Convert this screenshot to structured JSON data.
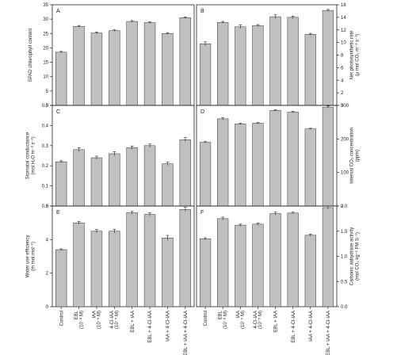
{
  "figure": {
    "group_labels": [
      "Control",
      "EBL\n(10⁻⁸ M)",
      "IAA\n(10⁻⁵ M)",
      "4-Cl-IAA\n(10⁻⁵ M)",
      "EBL + IAA",
      "EBL + 4-Cl-IAA",
      "IAA + 4-Cl-IAA",
      "EBL + IAA + 4-Cl-IAA"
    ]
  },
  "colors": {
    "bar": "#c0c0c0",
    "bar_stroke": "#333333",
    "axis": "#222222"
  },
  "chart_data": [
    {
      "type": "bar",
      "panel": "A",
      "ylabel": "SPAD chlorophyll content",
      "y_side": "left",
      "ylim": [
        0,
        35
      ],
      "yticks": [
        0,
        5,
        10,
        15,
        20,
        25,
        30,
        35
      ],
      "values": [
        18.5,
        27.5,
        25.2,
        26.0,
        29.2,
        28.8,
        25.0,
        30.5
      ],
      "errors": [
        0.3,
        0.3,
        0.3,
        0.3,
        0.3,
        0.3,
        0.3,
        0.3
      ]
    },
    {
      "type": "bar",
      "panel": "B",
      "ylabel": "Net photosynthetic rate\n(μ mol CO₂ m⁻² s⁻¹)",
      "y_side": "right",
      "ylim": [
        0,
        16
      ],
      "yticks": [
        0,
        2,
        4,
        6,
        8,
        10,
        12,
        14,
        16
      ],
      "values": [
        9.8,
        13.2,
        12.5,
        12.7,
        14.1,
        14.0,
        11.3,
        15.1
      ],
      "errors": [
        0.3,
        0.15,
        0.3,
        0.15,
        0.3,
        0.2,
        0.15,
        0.15
      ]
    },
    {
      "type": "bar",
      "panel": "C",
      "ylabel": "Stomatal conductance\n(mol H₂O m⁻² s⁻¹)",
      "y_side": "left",
      "ylim": [
        0,
        0.5
      ],
      "yticks": [
        0.0,
        0.1,
        0.2,
        0.3,
        0.4,
        0.5
      ],
      "values": [
        0.22,
        0.28,
        0.24,
        0.26,
        0.29,
        0.3,
        0.21,
        0.33
      ],
      "errors": [
        0.005,
        0.01,
        0.008,
        0.01,
        0.008,
        0.008,
        0.008,
        0.01
      ]
    },
    {
      "type": "bar",
      "panel": "D",
      "ylabel": "Internal CO₂ concentration\n(ppm)",
      "y_side": "right",
      "ylim": [
        0,
        300
      ],
      "yticks": [
        0,
        100,
        200,
        300
      ],
      "values": [
        190,
        260,
        245,
        247,
        285,
        280,
        230,
        295
      ],
      "errors": [
        2,
        3,
        2,
        2,
        2,
        2,
        2,
        3
      ]
    },
    {
      "type": "bar",
      "panel": "E",
      "ylabel": "Water use efficiency\n(m mol mol⁻¹)",
      "y_side": "left",
      "ylim": [
        0,
        6
      ],
      "yticks": [
        0,
        2,
        4,
        6
      ],
      "values": [
        3.4,
        5.0,
        4.5,
        4.5,
        5.6,
        5.5,
        4.1,
        5.8
      ],
      "errors": [
        0.05,
        0.08,
        0.1,
        0.12,
        0.08,
        0.1,
        0.15,
        0.12
      ]
    },
    {
      "type": "bar",
      "panel": "F",
      "ylabel": "Carbonic anhydrase activity\n(mol CO₂ kg⁻¹ FM S⁻¹)",
      "y_side": "right",
      "ylim": [
        0,
        2.0
      ],
      "yticks": [
        0.0,
        0.5,
        1.0,
        1.5,
        2.0
      ],
      "values": [
        1.35,
        1.75,
        1.62,
        1.64,
        1.85,
        1.86,
        1.42,
        1.97
      ],
      "errors": [
        0.02,
        0.03,
        0.02,
        0.02,
        0.03,
        0.02,
        0.02,
        0.03
      ]
    }
  ]
}
